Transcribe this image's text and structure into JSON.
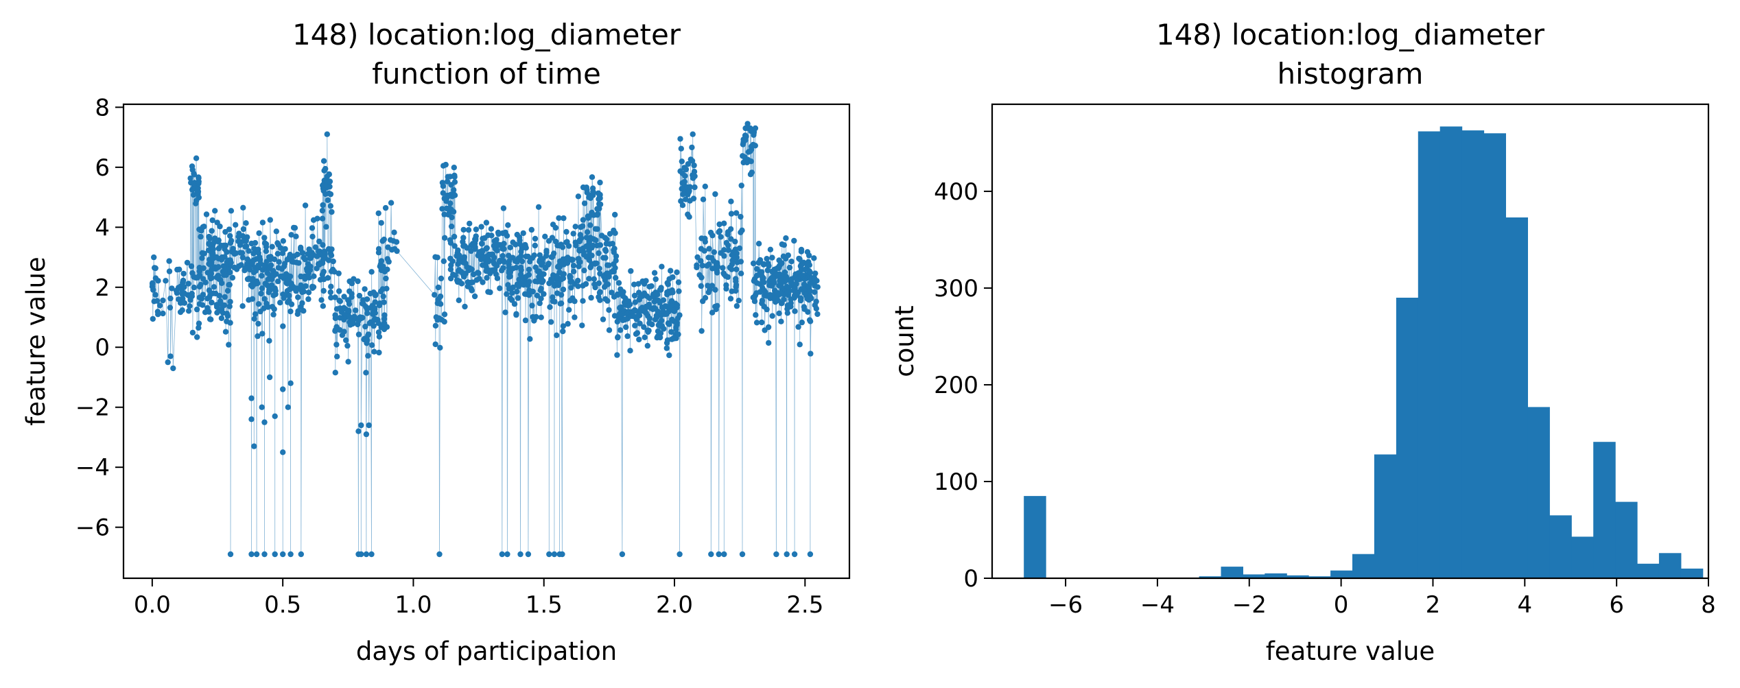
{
  "chart_data": [
    {
      "type": "scatter",
      "title": "148) location:log_diameter",
      "subtitle": "function of time",
      "xlabel": "days of participation",
      "ylabel": "feature value",
      "xlim": [
        -0.11,
        2.67
      ],
      "ylim": [
        -7.7,
        8.1
      ],
      "xticks": [
        0.0,
        0.5,
        1.0,
        1.5,
        2.0,
        2.5
      ],
      "xtick_labels": [
        "0.0",
        "0.5",
        "1.0",
        "1.5",
        "2.0",
        "2.5"
      ],
      "yticks": [
        -6,
        -4,
        -2,
        0,
        2,
        4,
        6,
        8
      ],
      "ytick_labels": [
        "−6",
        "−4",
        "−2",
        "0",
        "2",
        "4",
        "6",
        "8"
      ],
      "grid": false,
      "point_color": "#1f77b4",
      "connected": true,
      "segments": [
        {
          "start": 0.0,
          "end": 0.3,
          "mean": 1.7,
          "spread": 0.55,
          "points": 120
        },
        {
          "start": 0.14,
          "end": 0.18,
          "mean": 5.5,
          "spread": 0.4,
          "points": 25
        },
        {
          "start": 0.18,
          "end": 0.37,
          "mean": 3.1,
          "spread": 0.6,
          "points": 120
        },
        {
          "start": 0.37,
          "end": 0.6,
          "mean": 2.3,
          "spread": 0.8,
          "points": 180
        },
        {
          "start": 0.6,
          "end": 0.7,
          "mean": 2.9,
          "spread": 0.7,
          "points": 60
        },
        {
          "start": 0.65,
          "end": 0.69,
          "mean": 5.4,
          "spread": 0.5,
          "points": 25
        },
        {
          "start": 0.7,
          "end": 0.9,
          "mean": 1.1,
          "spread": 0.7,
          "points": 120
        },
        {
          "start": 0.86,
          "end": 0.94,
          "mean": 3.0,
          "spread": 0.8,
          "points": 25
        },
        {
          "start": 1.08,
          "end": 1.12,
          "mean": 1.5,
          "spread": 0.8,
          "points": 20
        },
        {
          "start": 1.11,
          "end": 1.16,
          "mean": 5.2,
          "spread": 0.6,
          "points": 35
        },
        {
          "start": 1.14,
          "end": 1.35,
          "mean": 3.0,
          "spread": 0.6,
          "points": 150
        },
        {
          "start": 1.35,
          "end": 1.62,
          "mean": 2.5,
          "spread": 0.8,
          "points": 200
        },
        {
          "start": 1.62,
          "end": 1.7,
          "mean": 3.3,
          "spread": 0.8,
          "points": 60
        },
        {
          "start": 1.65,
          "end": 1.72,
          "mean": 5.0,
          "spread": 0.5,
          "points": 25
        },
        {
          "start": 1.7,
          "end": 1.78,
          "mean": 2.5,
          "spread": 0.8,
          "points": 60
        },
        {
          "start": 1.78,
          "end": 2.02,
          "mean": 1.2,
          "spread": 0.6,
          "points": 180
        },
        {
          "start": 2.02,
          "end": 2.08,
          "mean": 5.6,
          "spread": 0.6,
          "points": 40
        },
        {
          "start": 2.08,
          "end": 2.26,
          "mean": 3.0,
          "spread": 0.9,
          "points": 100
        },
        {
          "start": 2.26,
          "end": 2.31,
          "mean": 6.6,
          "spread": 0.5,
          "points": 30
        },
        {
          "start": 2.3,
          "end": 2.55,
          "mean": 2.1,
          "spread": 0.7,
          "points": 220
        }
      ],
      "low_outliers": {
        "value": -6.9,
        "x": [
          0.3,
          0.38,
          0.4,
          0.43,
          0.47,
          0.5,
          0.53,
          0.57,
          0.79,
          0.8,
          0.82,
          0.84,
          1.1,
          1.34,
          1.36,
          1.41,
          1.44,
          1.52,
          1.54,
          1.56,
          1.57,
          1.8,
          2.02,
          2.14,
          2.17,
          2.19,
          2.26,
          2.39,
          2.43,
          2.46,
          2.52
        ]
      },
      "mid_outliers": [
        {
          "x": 0.38,
          "y": -2.4
        },
        {
          "x": 0.39,
          "y": -3.3
        },
        {
          "x": 0.38,
          "y": -1.7
        },
        {
          "x": 0.42,
          "y": -2.0
        },
        {
          "x": 0.43,
          "y": -2.5
        },
        {
          "x": 0.45,
          "y": -1.0
        },
        {
          "x": 0.47,
          "y": -2.3
        },
        {
          "x": 0.5,
          "y": -3.5
        },
        {
          "x": 0.5,
          "y": -1.4
        },
        {
          "x": 0.52,
          "y": -2.0
        },
        {
          "x": 0.53,
          "y": -1.2
        },
        {
          "x": 0.79,
          "y": -2.8
        },
        {
          "x": 0.8,
          "y": -2.6
        },
        {
          "x": 0.82,
          "y": -2.9
        },
        {
          "x": 0.83,
          "y": -2.6
        },
        {
          "x": 0.07,
          "y": -0.3
        },
        {
          "x": 0.08,
          "y": -0.7
        },
        {
          "x": 0.06,
          "y": -0.5
        },
        {
          "x": 0.67,
          "y": 7.1
        },
        {
          "x": 2.07,
          "y": 7.1
        },
        {
          "x": 2.28,
          "y": 7.45
        }
      ]
    },
    {
      "type": "bar",
      "title": "148) location:log_diameter",
      "subtitle": "histogram",
      "xlabel": "feature value",
      "ylabel": "count",
      "xlim": [
        -7.6,
        8.0
      ],
      "ylim": [
        0,
        490
      ],
      "xticks": [
        -6,
        -4,
        -2,
        0,
        2,
        4,
        6,
        8
      ],
      "xtick_labels": [
        "−6",
        "−4",
        "−2",
        "0",
        "2",
        "4",
        "6",
        "8"
      ],
      "yticks": [
        0,
        100,
        200,
        300,
        400
      ],
      "ytick_labels": [
        "0",
        "100",
        "200",
        "300",
        "400"
      ],
      "grid": false,
      "bar_color": "#1f77b4",
      "bin_start": -6.91,
      "bin_width": 0.477,
      "values": [
        85,
        0,
        0,
        0,
        0,
        0,
        0,
        0,
        2,
        12,
        4,
        5,
        3,
        2,
        8,
        25,
        128,
        290,
        462,
        467,
        463,
        460,
        373,
        177,
        65,
        43,
        141,
        79,
        15,
        26,
        10
      ]
    }
  ]
}
